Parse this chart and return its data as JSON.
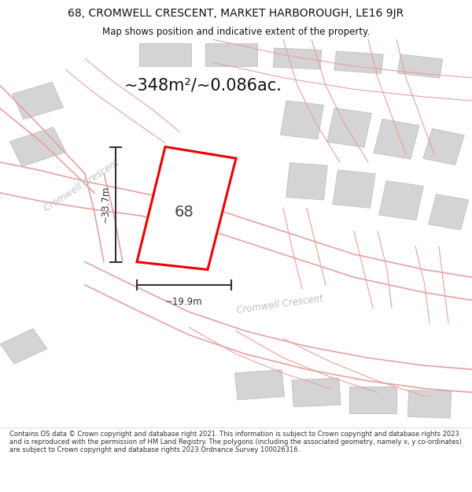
{
  "title": "68, CROMWELL CRESCENT, MARKET HARBOROUGH, LE16 9JR",
  "subtitle": "Map shows position and indicative extent of the property.",
  "area_text": "~348m²/~0.086ac.",
  "label_68": "68",
  "dim_height": "~33.7m",
  "dim_width": "~19.9m",
  "street_label1": "Cromwell Crescent",
  "street_label2": "Cromwell Crescent",
  "footer": "Contains OS data © Crown copyright and database right 2021. This information is subject to Crown copyright and database rights 2023 and is reproduced with the permission of HM Land Registry. The polygons (including the associated geometry, namely x, y co-ordinates) are subject to Crown copyright and database rights 2023 Ordnance Survey 100026316.",
  "bg_color": "#f5f5f5",
  "road_color": "#e8a0a0",
  "building_fill": "#d4d4d4",
  "building_edge": "#c0c0c0",
  "property_color": "#ee0000",
  "property_fill": "#ffffff",
  "title_color": "#111111",
  "dim_color": "#333333",
  "area_color": "#111111",
  "street_color": "#c8c8c8",
  "footer_color": "#333333"
}
